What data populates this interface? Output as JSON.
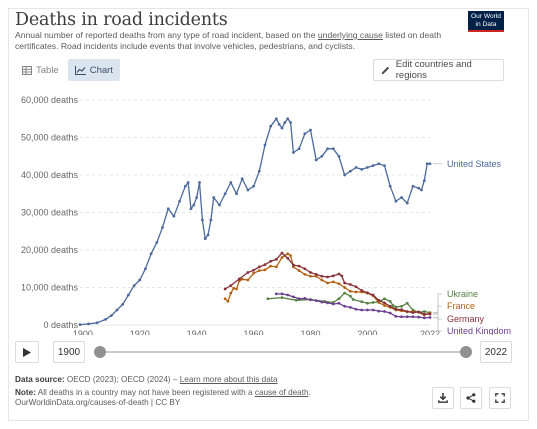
{
  "header": {
    "title": "Deaths in road incidents",
    "subtitle_a": "Annual number of reported deaths from any type of road incident, based on the ",
    "subtitle_link": "underlying cause",
    "subtitle_b": " listed on death certificates. Road incidents include events that involve vehicles, pedestrians, and cyclists.",
    "logo_line1": "Our World",
    "logo_line2": "in Data"
  },
  "tabs": [
    {
      "label": "Table",
      "icon": "table-icon",
      "active": false
    },
    {
      "label": "Chart",
      "icon": "line-chart-icon",
      "active": true
    }
  ],
  "edit_button": {
    "label": "Edit countries and regions",
    "icon": "pencil-icon"
  },
  "timeline": {
    "start_year": "1900",
    "end_year": "2022",
    "play_icon": "play-icon"
  },
  "footer": {
    "source_label": "Data source:",
    "source_text": " OECD (2023); OECD (2024) – ",
    "source_link": "Learn more about this data",
    "note_label": "Note:",
    "note_text": " All deaths in a country may not have been registered with a ",
    "note_link": "cause of death",
    "note_end": ".",
    "url_line": "OurWorldinData.org/causes-of-death | CC BY"
  },
  "actions": [
    {
      "name": "download-button",
      "icon": "download-icon"
    },
    {
      "name": "share-button",
      "icon": "share-icon"
    },
    {
      "name": "fullscreen-button",
      "icon": "expand-icon"
    }
  ],
  "colors": {
    "united_states": "#4c6a9c",
    "ukraine": "#578145",
    "france": "#b16214",
    "germany": "#883039",
    "united_kingdom": "#6d3e91",
    "grid": "#dddddd",
    "axis_text": "#666666"
  },
  "chart_data": {
    "type": "line",
    "title": "Deaths in road incidents",
    "x_ticks": [
      1900,
      1920,
      1940,
      1960,
      1980,
      2000,
      2022
    ],
    "y_ticks": [
      "0 deaths",
      "10,000 deaths",
      "20,000 deaths",
      "30,000 deaths",
      "40,000 deaths",
      "50,000 deaths",
      "60,000 deaths"
    ],
    "y_tick_values": [
      0,
      10000,
      20000,
      30000,
      40000,
      50000,
      60000
    ],
    "xlim": [
      1899,
      2022
    ],
    "ylim": [
      0,
      60000
    ],
    "grid": "horizontal dashed",
    "legend_placement": "right, inline labels",
    "series": [
      {
        "name": "United States",
        "key": "united_states",
        "x": [
          1899,
          1902,
          1905,
          1908,
          1910,
          1912,
          1914,
          1916,
          1918,
          1920,
          1922,
          1924,
          1926,
          1928,
          1930,
          1932,
          1934,
          1936,
          1937,
          1938,
          1939,
          1940,
          1941,
          1942,
          1943,
          1944,
          1945,
          1946,
          1948,
          1950,
          1952,
          1954,
          1956,
          1958,
          1960,
          1962,
          1964,
          1966,
          1968,
          1969,
          1970,
          1971,
          1972,
          1973,
          1974,
          1976,
          1978,
          1980,
          1982,
          1984,
          1986,
          1988,
          1990,
          1992,
          1994,
          1996,
          1998,
          2000,
          2002,
          2004,
          2006,
          2008,
          2010,
          2012,
          2014,
          2016,
          2018,
          2019,
          2020,
          2021,
          2022
        ],
        "y": [
          100,
          300,
          600,
          1500,
          2500,
          4000,
          5500,
          8000,
          10500,
          12000,
          15000,
          19000,
          22000,
          26000,
          31000,
          29000,
          33000,
          37000,
          38000,
          31000,
          32000,
          34000,
          38000,
          28000,
          23000,
          24000,
          28000,
          34000,
          32000,
          35000,
          38000,
          35000,
          39000,
          36000,
          37000,
          41000,
          48000,
          53000,
          55000,
          53500,
          52500,
          54000,
          55000,
          54000,
          46000,
          47000,
          51000,
          52000,
          44000,
          45000,
          47000,
          47000,
          45000,
          40000,
          41000,
          42000,
          41500,
          42000,
          42500,
          43000,
          42500,
          37000,
          33000,
          34000,
          32500,
          37000,
          36500,
          36000,
          38500,
          43000,
          43000
        ],
        "label": "United States"
      },
      {
        "name": "Ukraine",
        "key": "ukraine",
        "x": [
          1965,
          1970,
          1975,
          1980,
          1985,
          1988,
          1990,
          1992,
          1994,
          1995,
          1998,
          2000,
          2002,
          2004,
          2006,
          2008,
          2009,
          2010,
          2012,
          2014,
          2016,
          2018,
          2020,
          2022
        ],
        "y": [
          7000,
          7300,
          6600,
          6800,
          6300,
          6000,
          7000,
          8500,
          7700,
          6800,
          6200,
          5800,
          6000,
          6200,
          7000,
          6300,
          5200,
          4800,
          5000,
          5800,
          4000,
          3400,
          3600,
          3300
        ],
        "label": "Ukraine"
      },
      {
        "name": "France",
        "key": "france",
        "x": [
          1950,
          1951,
          1952,
          1953,
          1954,
          1955,
          1956,
          1958,
          1960,
          1962,
          1964,
          1966,
          1968,
          1970,
          1971,
          1972,
          1973,
          1974,
          1976,
          1978,
          1980,
          1982,
          1984,
          1986,
          1988,
          1990,
          1992,
          1994,
          1996,
          1998,
          2000,
          2002,
          2004,
          2006,
          2008,
          2010,
          2012,
          2014,
          2016,
          2018,
          2020,
          2022
        ],
        "y": [
          7000,
          6300,
          8500,
          9800,
          9600,
          11800,
          12200,
          12000,
          13800,
          14500,
          14700,
          15700,
          15500,
          18000,
          18500,
          19000,
          18500,
          15500,
          14500,
          13500,
          13000,
          13000,
          12000,
          11200,
          11500,
          11000,
          10000,
          9000,
          8800,
          8800,
          8500,
          7800,
          6000,
          5200,
          4700,
          4000,
          3800,
          3500,
          3600,
          3400,
          2700,
          3200
        ],
        "label": "France"
      },
      {
        "name": "Germany",
        "key": "germany",
        "x": [
          1950,
          1952,
          1955,
          1958,
          1960,
          1962,
          1964,
          1966,
          1968,
          1970,
          1972,
          1974,
          1976,
          1978,
          1980,
          1982,
          1984,
          1986,
          1988,
          1990,
          1991,
          1992,
          1994,
          1996,
          1998,
          2000,
          2002,
          2004,
          2006,
          2008,
          2010,
          2012,
          2014,
          2016,
          2018,
          2020,
          2022
        ],
        "y": [
          9600,
          10500,
          12300,
          14000,
          14600,
          15500,
          16100,
          17000,
          17500,
          19200,
          17800,
          16000,
          15700,
          15000,
          14000,
          13500,
          13000,
          12800,
          13100,
          13600,
          13100,
          11200,
          10800,
          10200,
          9200,
          8600,
          8000,
          6600,
          5900,
          5000,
          4200,
          4100,
          3600,
          3300,
          3500,
          2900,
          2900
        ],
        "label": "Germany"
      },
      {
        "name": "United Kingdom",
        "key": "united_kingdom",
        "x": [
          1968,
          1970,
          1972,
          1974,
          1976,
          1978,
          1980,
          1982,
          1984,
          1986,
          1988,
          1990,
          1992,
          1994,
          1996,
          1998,
          2000,
          2002,
          2004,
          2006,
          2008,
          2010,
          2012,
          2014,
          2016,
          2018,
          2020,
          2022
        ],
        "y": [
          8300,
          8300,
          8000,
          7500,
          7000,
          7100,
          6700,
          6500,
          6100,
          5900,
          5600,
          5800,
          5000,
          4700,
          4200,
          4000,
          4000,
          4000,
          3700,
          3600,
          3200,
          2300,
          2200,
          2200,
          2200,
          2100,
          1900,
          2000
        ],
        "label": "United Kingdom"
      }
    ]
  }
}
